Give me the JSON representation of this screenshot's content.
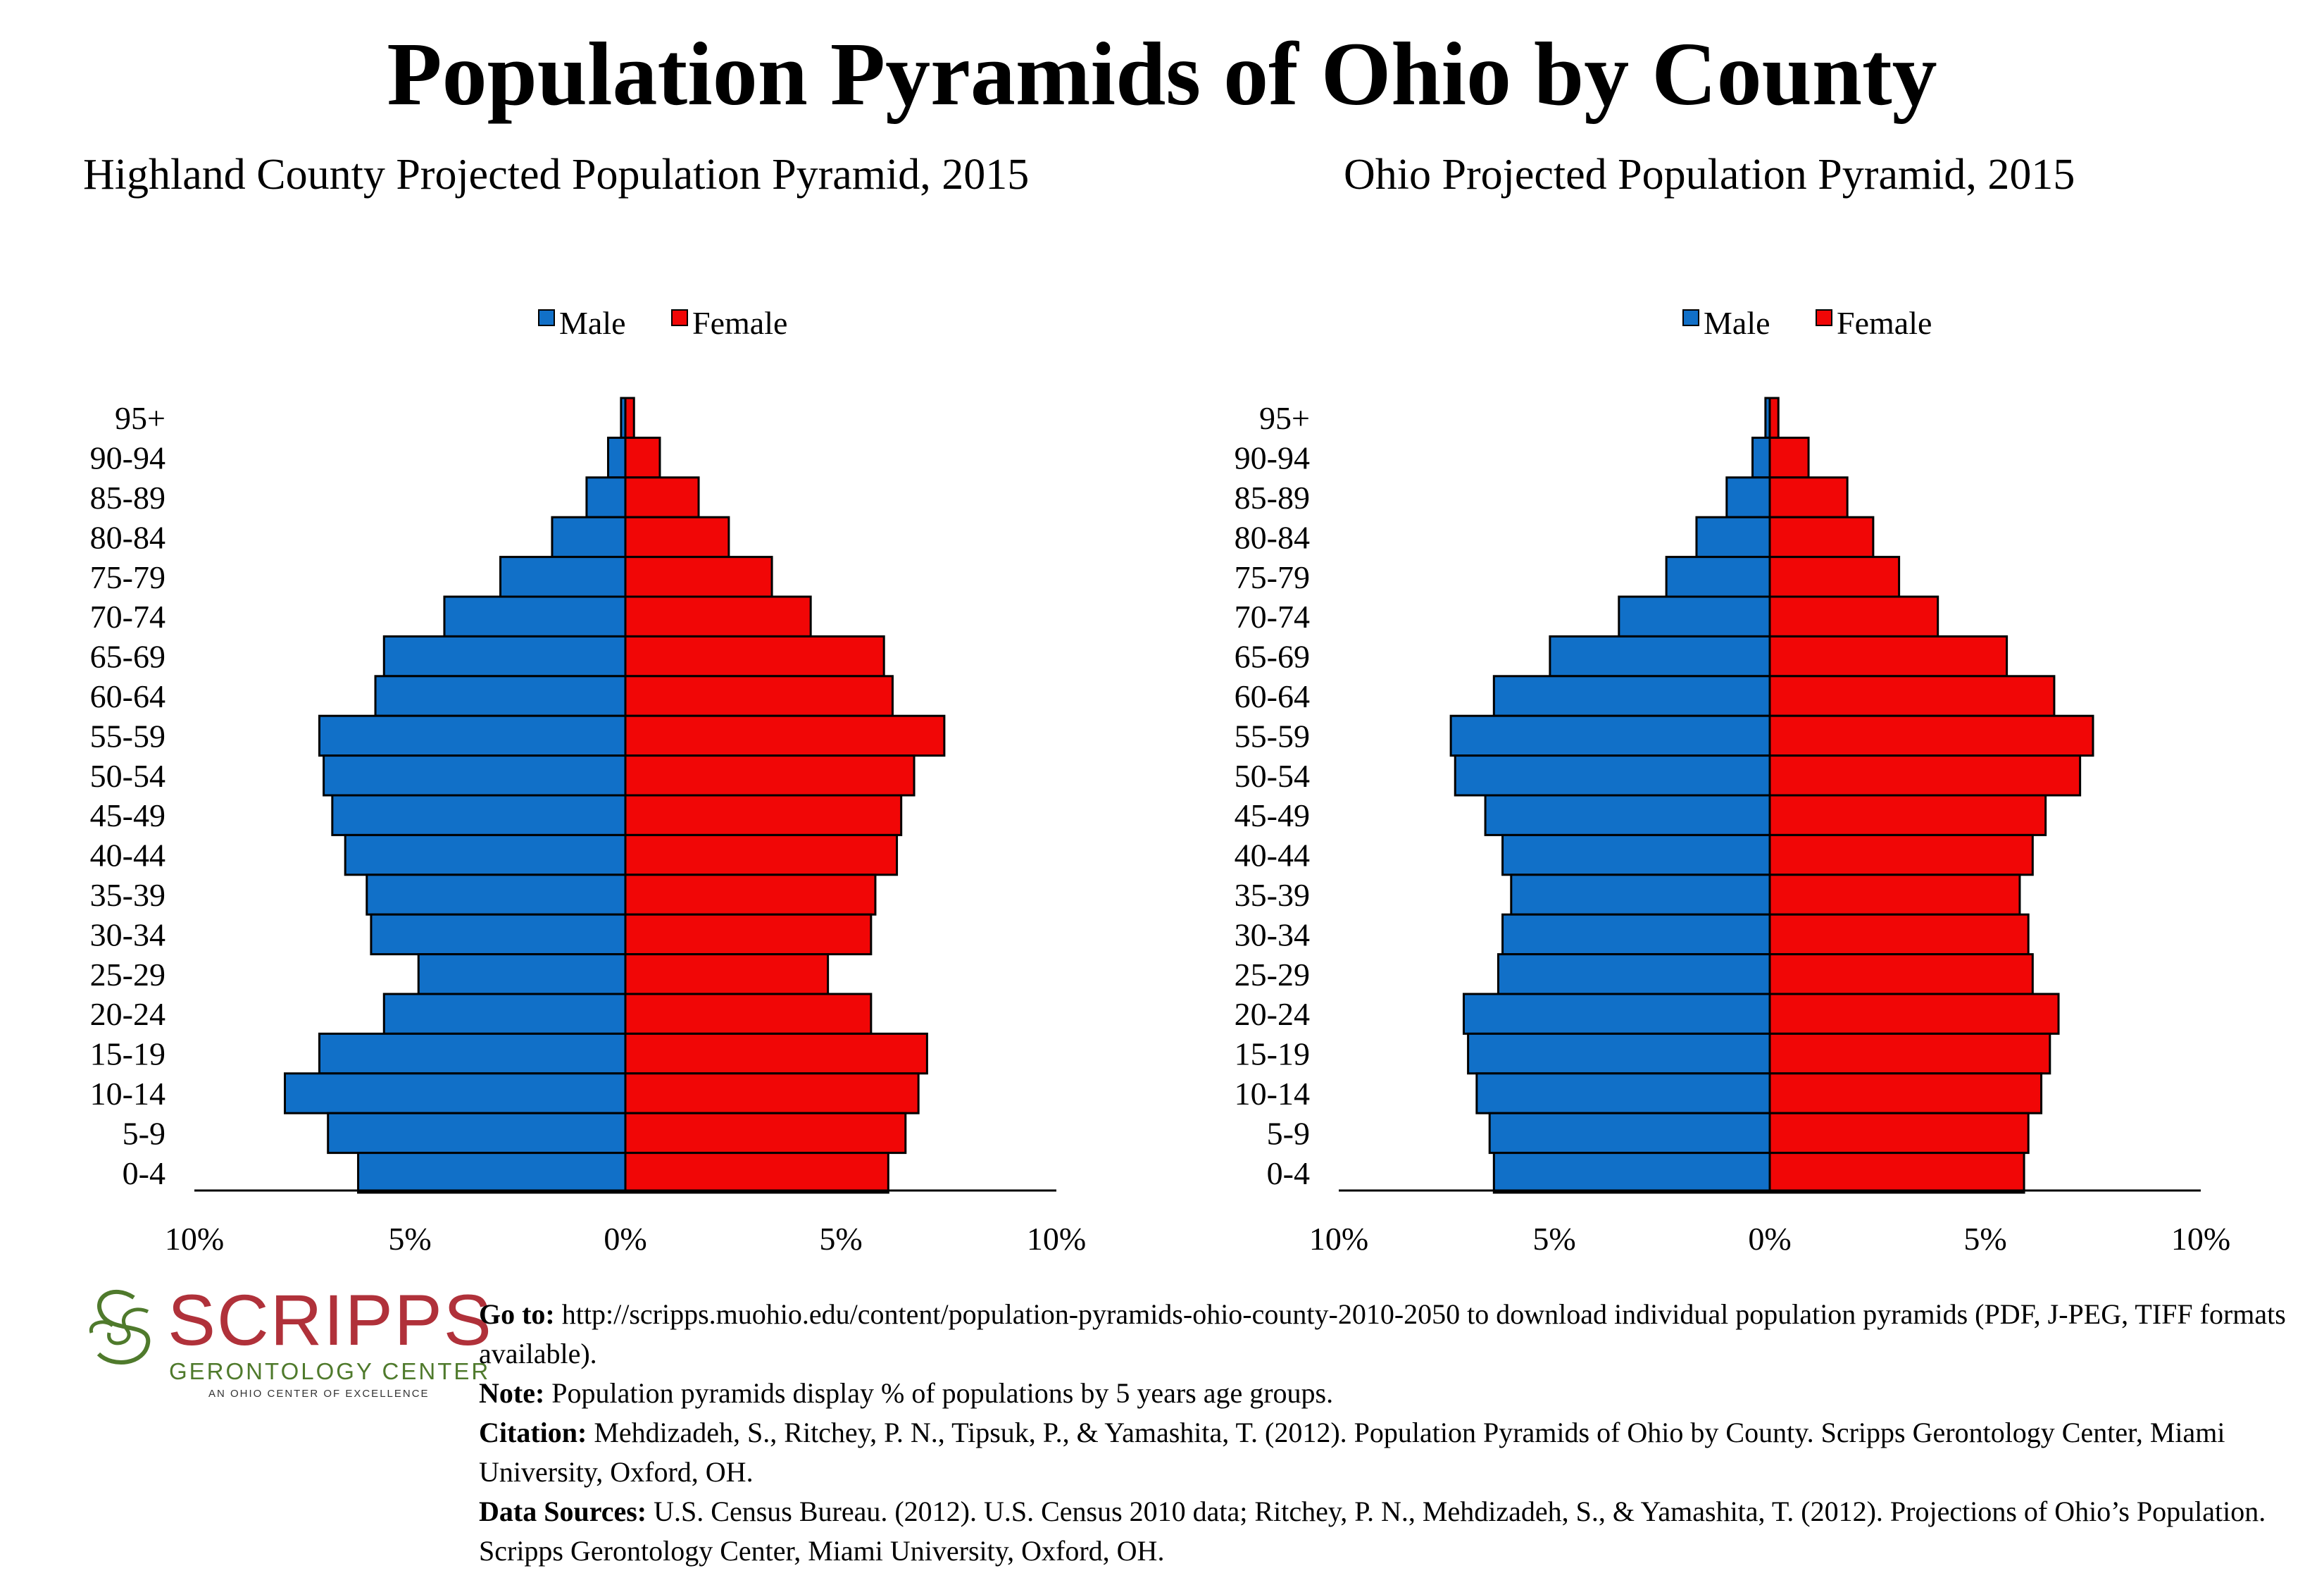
{
  "title": "Population Pyramids of Ohio by County",
  "colors": {
    "male": "#1170c8",
    "female": "#f10606",
    "logo_red": "#b0313a",
    "logo_green": "#4f7a2c"
  },
  "legend": {
    "male": "Male",
    "female": "Female"
  },
  "chart_data": [
    {
      "type": "bar",
      "orientation": "horizontal-pyramid",
      "title": "Highland County Projected Population Pyramid, 2015",
      "categories": [
        "95+",
        "90-94",
        "85-89",
        "80-84",
        "75-79",
        "70-74",
        "65-69",
        "60-64",
        "55-59",
        "50-54",
        "45-49",
        "40-44",
        "35-39",
        "30-34",
        "25-29",
        "20-24",
        "15-19",
        "10-14",
        "5-9",
        "0-4"
      ],
      "series": [
        {
          "name": "Male",
          "values": [
            0.1,
            0.4,
            0.9,
            1.7,
            2.9,
            4.2,
            5.6,
            5.8,
            7.1,
            7.0,
            6.8,
            6.5,
            6.0,
            5.9,
            4.8,
            5.6,
            7.1,
            7.9,
            6.9,
            6.2
          ]
        },
        {
          "name": "Female",
          "values": [
            0.2,
            0.8,
            1.7,
            2.4,
            3.4,
            4.3,
            6.0,
            6.2,
            7.4,
            6.7,
            6.4,
            6.3,
            5.8,
            5.7,
            4.7,
            5.7,
            7.0,
            6.8,
            6.5,
            6.1
          ]
        }
      ],
      "x_ticks": [
        "10%",
        "5%",
        "0%",
        "5%",
        "10%"
      ],
      "xlim": [
        -10,
        10
      ],
      "legend_position": "top-center"
    },
    {
      "type": "bar",
      "orientation": "horizontal-pyramid",
      "title": "Ohio Projected Population Pyramid, 2015",
      "categories": [
        "95+",
        "90-94",
        "85-89",
        "80-84",
        "75-79",
        "70-74",
        "65-69",
        "60-64",
        "55-59",
        "50-54",
        "45-49",
        "40-44",
        "35-39",
        "30-34",
        "25-29",
        "20-24",
        "15-19",
        "10-14",
        "5-9",
        "0-4"
      ],
      "series": [
        {
          "name": "Male",
          "values": [
            0.1,
            0.4,
            1.0,
            1.7,
            2.4,
            3.5,
            5.1,
            6.4,
            7.4,
            7.3,
            6.6,
            6.2,
            6.0,
            6.2,
            6.3,
            7.1,
            7.0,
            6.8,
            6.5,
            6.4
          ]
        },
        {
          "name": "Female",
          "values": [
            0.2,
            0.9,
            1.8,
            2.4,
            3.0,
            3.9,
            5.5,
            6.6,
            7.5,
            7.2,
            6.4,
            6.1,
            5.8,
            6.0,
            6.1,
            6.7,
            6.5,
            6.3,
            6.0,
            5.9
          ]
        }
      ],
      "x_ticks": [
        "10%",
        "5%",
        "0%",
        "5%",
        "10%"
      ],
      "xlim": [
        -10,
        10
      ],
      "legend_position": "top-center"
    }
  ],
  "logo": {
    "word": "SCRIPPS",
    "sub": "GERONTOLOGY CENTER",
    "tag": "AN OHIO CENTER OF EXCELLENCE"
  },
  "notes": {
    "goto_label": "Go to:",
    "goto_text": "http://scripps.muohio.edu/content/population-pyramids-ohio-county-2010-2050 to download individual population pyramids (PDF, J-PEG, TIFF formats available).",
    "note_label": "Note:",
    "note_text": "Population pyramids display % of populations by 5 years age groups.",
    "citation_label": "Citation:",
    "citation_text": "Mehdizadeh, S., Ritchey, P. N., Tipsuk, P., & Yamashita, T. (2012). Population Pyramids of Ohio by County. Scripps Gerontology Center, Miami University, Oxford, OH.",
    "sources_label": "Data Sources:",
    "sources_text": "U.S. Census Bureau. (2012). U.S. Census 2010 data; Ritchey, P. N., Mehdizadeh, S., & Yamashita, T. (2012). Projections of Ohio’s Population. Scripps Gerontology Center, Miami University, Oxford, OH."
  }
}
